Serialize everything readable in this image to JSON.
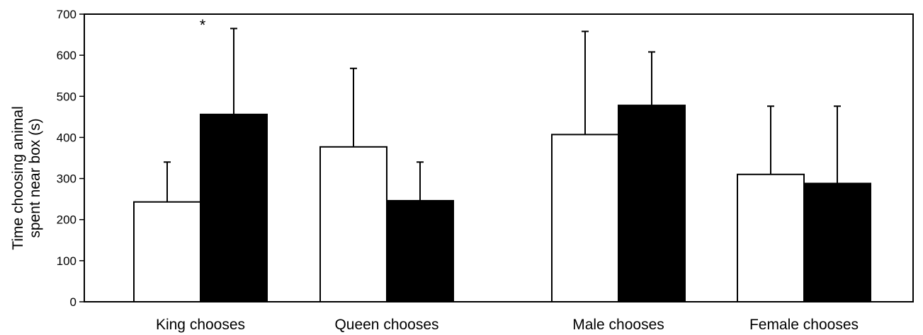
{
  "chart_data": {
    "type": "bar",
    "title": "",
    "xlabel": "",
    "ylabel_lines": [
      "Time choosing animal",
      "spent near box (s)"
    ],
    "ylim": [
      0,
      700
    ],
    "yticks": [
      "0",
      "100",
      "200",
      "300",
      "400",
      "500",
      "600",
      "700"
    ],
    "grid": false,
    "categories": [
      "King chooses",
      "Queen chooses",
      "Male chooses",
      "Female chooses"
    ],
    "series": [
      {
        "fill": "#ffffff",
        "values": [
          243,
          377,
          407,
          310
        ],
        "error_upper": [
          340,
          568,
          658,
          476
        ]
      },
      {
        "fill": "#000000",
        "values": [
          456,
          246,
          478,
          288
        ],
        "error_upper": [
          665,
          340,
          608,
          476
        ]
      }
    ],
    "annotations": [
      {
        "text": "*",
        "category_index": 0,
        "series_index": 1
      }
    ]
  }
}
